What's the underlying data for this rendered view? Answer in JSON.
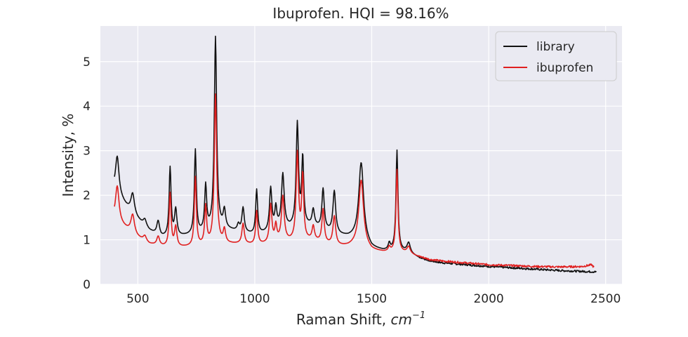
{
  "chart_data": {
    "type": "line",
    "title": "Ibuprofen. HQI = 98.16%",
    "xlabel": "Raman Shift, ",
    "xlabel_unit": "cm",
    "xlabel_unit_exp": "−1",
    "ylabel": "Intensity, %",
    "xlim": [
      340,
      2570
    ],
    "ylim": [
      0,
      5.8
    ],
    "xticks": [
      500,
      1000,
      1500,
      2000,
      2500
    ],
    "yticks": [
      0,
      1,
      2,
      3,
      4,
      5
    ],
    "grid": true,
    "legend_position": "top-right",
    "background": "#eaeaf2",
    "series": [
      {
        "name": "library",
        "color": "#111111",
        "baseline": [
          [
            400,
            2.1
          ],
          [
            450,
            1.75
          ],
          [
            500,
            1.45
          ],
          [
            550,
            1.2
          ],
          [
            600,
            1.05
          ],
          [
            650,
            1.05
          ],
          [
            700,
            1.08
          ],
          [
            750,
            1.1
          ],
          [
            800,
            1.2
          ],
          [
            850,
            1.25
          ],
          [
            900,
            1.2
          ],
          [
            950,
            1.15
          ],
          [
            1000,
            1.1
          ],
          [
            1050,
            1.15
          ],
          [
            1100,
            1.25
          ],
          [
            1150,
            1.25
          ],
          [
            1200,
            1.3
          ],
          [
            1250,
            1.3
          ],
          [
            1300,
            1.2
          ],
          [
            1350,
            1.1
          ],
          [
            1400,
            1.05
          ],
          [
            1450,
            1.05
          ],
          [
            1500,
            0.8
          ],
          [
            1550,
            0.75
          ],
          [
            1600,
            0.75
          ],
          [
            1650,
            0.72
          ],
          [
            1700,
            0.6
          ],
          [
            1750,
            0.52
          ],
          [
            1800,
            0.48
          ],
          [
            1900,
            0.44
          ],
          [
            2000,
            0.4
          ],
          [
            2100,
            0.37
          ],
          [
            2200,
            0.34
          ],
          [
            2300,
            0.31
          ],
          [
            2400,
            0.29
          ],
          [
            2460,
            0.28
          ]
        ],
        "peaks": [
          [
            412,
            0.85,
            9
          ],
          [
            478,
            0.45,
            9
          ],
          [
            530,
            0.15,
            8
          ],
          [
            587,
            0.32,
            7
          ],
          [
            638,
            1.55,
            5
          ],
          [
            662,
            0.6,
            6
          ],
          [
            746,
            1.9,
            5
          ],
          [
            790,
            1.0,
            5
          ],
          [
            832,
            4.3,
            6
          ],
          [
            870,
            0.4,
            6
          ],
          [
            930,
            0.15,
            6
          ],
          [
            950,
            0.55,
            6
          ],
          [
            1008,
            1.0,
            5
          ],
          [
            1068,
            0.95,
            6
          ],
          [
            1090,
            0.45,
            5
          ],
          [
            1120,
            1.2,
            7
          ],
          [
            1182,
            2.3,
            6
          ],
          [
            1205,
            1.5,
            5
          ],
          [
            1250,
            0.35,
            6
          ],
          [
            1292,
            0.9,
            6
          ],
          [
            1340,
            0.95,
            7
          ],
          [
            1455,
            1.7,
            12
          ],
          [
            1575,
            0.15,
            5
          ],
          [
            1608,
            2.25,
            5
          ],
          [
            1658,
            0.22,
            8
          ]
        ],
        "noise": 0.022,
        "noise_start": 1700
      },
      {
        "name": "ibuprofen",
        "color": "#e02020",
        "baseline": [
          [
            400,
            1.45
          ],
          [
            450,
            1.25
          ],
          [
            500,
            1.05
          ],
          [
            550,
            0.9
          ],
          [
            600,
            0.85
          ],
          [
            650,
            0.82
          ],
          [
            700,
            0.83
          ],
          [
            750,
            0.84
          ],
          [
            800,
            0.88
          ],
          [
            850,
            0.9
          ],
          [
            900,
            0.9
          ],
          [
            950,
            0.9
          ],
          [
            1000,
            0.88
          ],
          [
            1050,
            0.9
          ],
          [
            1100,
            0.95
          ],
          [
            1150,
            0.95
          ],
          [
            1200,
            0.98
          ],
          [
            1250,
            0.98
          ],
          [
            1300,
            0.9
          ],
          [
            1350,
            0.85
          ],
          [
            1400,
            0.85
          ],
          [
            1450,
            0.9
          ],
          [
            1500,
            0.75
          ],
          [
            1550,
            0.72
          ],
          [
            1600,
            0.72
          ],
          [
            1650,
            0.7
          ],
          [
            1700,
            0.62
          ],
          [
            1750,
            0.55
          ],
          [
            1800,
            0.52
          ],
          [
            1900,
            0.48
          ],
          [
            2000,
            0.44
          ],
          [
            2100,
            0.42
          ],
          [
            2200,
            0.4
          ],
          [
            2300,
            0.39
          ],
          [
            2400,
            0.4
          ],
          [
            2440,
            0.44
          ],
          [
            2450,
            0.38
          ]
        ],
        "peaks": [
          [
            412,
            0.8,
            9
          ],
          [
            478,
            0.42,
            9
          ],
          [
            530,
            0.12,
            8
          ],
          [
            587,
            0.2,
            7
          ],
          [
            638,
            1.2,
            5
          ],
          [
            662,
            0.45,
            6
          ],
          [
            746,
            1.55,
            5
          ],
          [
            790,
            0.85,
            5
          ],
          [
            832,
            3.35,
            6
          ],
          [
            870,
            0.3,
            6
          ],
          [
            950,
            0.45,
            6
          ],
          [
            1008,
            0.75,
            5
          ],
          [
            1068,
            0.85,
            6
          ],
          [
            1090,
            0.35,
            5
          ],
          [
            1120,
            1.0,
            7
          ],
          [
            1182,
            1.95,
            6
          ],
          [
            1205,
            1.45,
            5
          ],
          [
            1250,
            0.3,
            6
          ],
          [
            1292,
            0.75,
            6
          ],
          [
            1340,
            0.65,
            7
          ],
          [
            1455,
            1.45,
            12
          ],
          [
            1575,
            0.1,
            5
          ],
          [
            1608,
            1.85,
            5
          ],
          [
            1658,
            0.15,
            8
          ]
        ],
        "noise": 0.022,
        "noise_start": 1700
      }
    ]
  }
}
